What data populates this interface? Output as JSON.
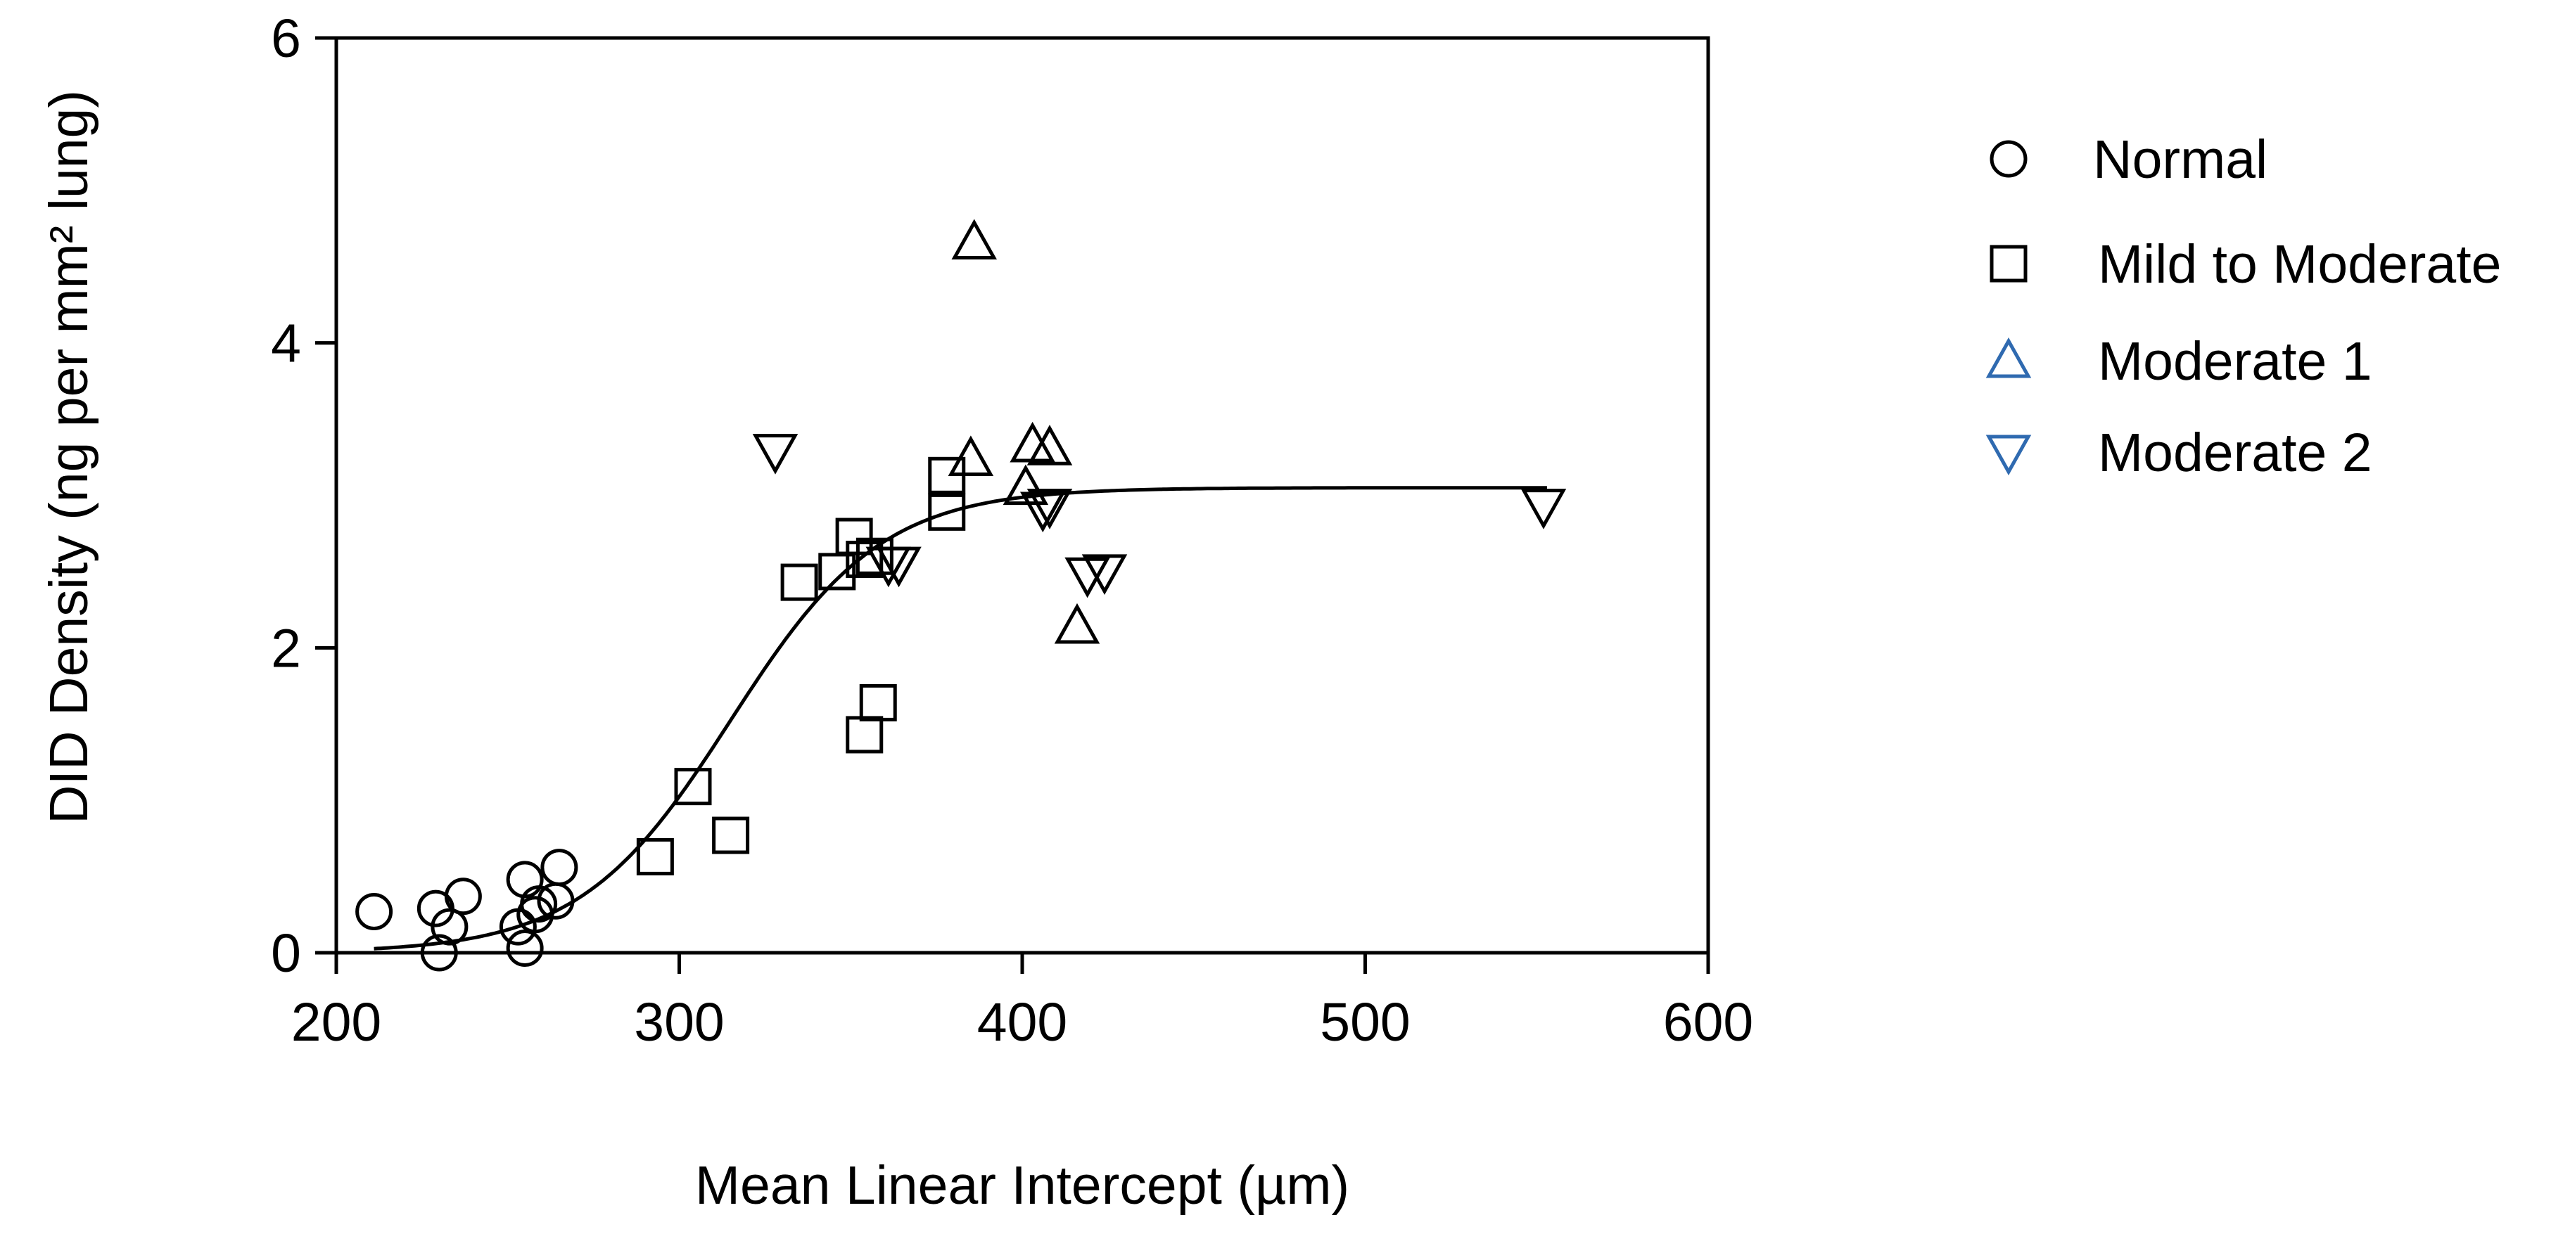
{
  "chart_data": {
    "type": "scatter",
    "xlabel": "Mean Linear Intercept (µm)",
    "ylabel": "DID Density (ng per mm² lung)",
    "xlim": [
      200,
      600
    ],
    "ylim": [
      0,
      6
    ],
    "xticks": [
      200,
      300,
      400,
      500,
      600
    ],
    "yticks": [
      0,
      2,
      4,
      6
    ],
    "grid": false,
    "legend_position": "right",
    "series": [
      {
        "name": "Normal",
        "marker": "circle",
        "legend_color": "#000000",
        "points": [
          [
            211,
            0.27
          ],
          [
            229,
            0.29
          ],
          [
            230,
            0.0
          ],
          [
            233,
            0.17
          ],
          [
            237,
            0.37
          ],
          [
            253,
            0.17
          ],
          [
            255,
            0.48
          ],
          [
            255,
            0.03
          ],
          [
            258,
            0.25
          ],
          [
            259,
            0.32
          ],
          [
            264,
            0.34
          ],
          [
            265,
            0.56
          ]
        ]
      },
      {
        "name": "Mild to Moderate",
        "marker": "square",
        "legend_color": "#000000",
        "points": [
          [
            293,
            0.63
          ],
          [
            304,
            1.09
          ],
          [
            315,
            0.77
          ],
          [
            335,
            2.43
          ],
          [
            346,
            2.5
          ],
          [
            351,
            2.73
          ],
          [
            354,
            2.58
          ],
          [
            354,
            1.43
          ],
          [
            357,
            2.6
          ],
          [
            358,
            1.64
          ],
          [
            378,
            2.89
          ],
          [
            378,
            3.13
          ]
        ]
      },
      {
        "name": "Moderate 1",
        "marker": "triangle-up",
        "legend_color": "#2f6ab0",
        "points": [
          [
            386,
            4.66
          ],
          [
            385,
            3.24
          ],
          [
            401,
            3.05
          ],
          [
            403,
            3.33
          ],
          [
            408,
            3.31
          ],
          [
            416,
            2.14
          ]
        ]
      },
      {
        "name": "Moderate 2",
        "marker": "triangle-down",
        "legend_color": "#2f6ab0",
        "points": [
          [
            328,
            3.29
          ],
          [
            361,
            2.55
          ],
          [
            364,
            2.55
          ],
          [
            406,
            2.91
          ],
          [
            408,
            2.93
          ],
          [
            419,
            2.48
          ],
          [
            424,
            2.5
          ],
          [
            552,
            2.93
          ]
        ]
      }
    ],
    "fit_curve": {
      "type": "sigmoid",
      "x_range": [
        211,
        553
      ],
      "params": {
        "bottom": 0.0,
        "top": 3.05,
        "x50": 315,
        "slope": 22
      }
    },
    "zero_line": {
      "y": 0,
      "style": "dotted"
    }
  }
}
